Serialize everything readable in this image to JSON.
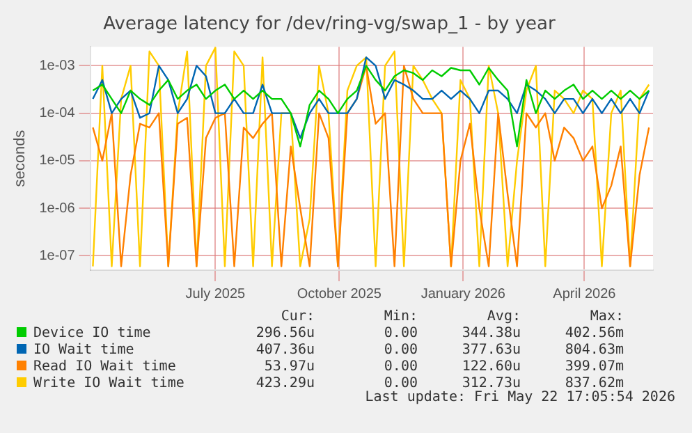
{
  "chart_data": {
    "type": "line",
    "title": "Average latency for /dev/ring-vg/swap_1 - by year",
    "ylabel": "seconds",
    "log": "y",
    "grid": true,
    "legend": "bottom",
    "x": [
      "2025-04-01",
      "2025-04-08",
      "2025-04-15",
      "2025-04-22",
      "2025-04-29",
      "2025-05-06",
      "2025-05-13",
      "2025-05-20",
      "2025-05-27",
      "2025-06-03",
      "2025-06-10",
      "2025-06-17",
      "2025-06-24",
      "2025-07-01",
      "2025-07-08",
      "2025-07-15",
      "2025-07-22",
      "2025-07-29",
      "2025-08-05",
      "2025-08-12",
      "2025-08-19",
      "2025-08-26",
      "2025-09-02",
      "2025-09-09",
      "2025-09-16",
      "2025-09-23",
      "2025-09-30",
      "2025-10-07",
      "2025-10-14",
      "2025-10-21",
      "2025-10-28",
      "2025-11-04",
      "2025-11-11",
      "2025-11-18",
      "2025-11-25",
      "2025-12-02",
      "2025-12-09",
      "2025-12-16",
      "2025-12-23",
      "2025-12-30",
      "2026-01-06",
      "2026-01-13",
      "2026-01-20",
      "2026-01-27",
      "2026-02-03",
      "2026-02-10",
      "2026-02-17",
      "2026-02-24",
      "2026-03-03",
      "2026-03-10",
      "2026-03-17",
      "2026-03-24",
      "2026-03-31",
      "2026-04-07",
      "2026-04-14",
      "2026-04-21",
      "2026-04-28",
      "2026-05-05",
      "2026-05-12",
      "2026-05-19"
    ],
    "xlim": [
      "2025-03-30",
      "2026-05-22"
    ],
    "xticks": [
      {
        "value": "2025-07-01",
        "label": "July 2025"
      },
      {
        "value": "2025-10-01",
        "label": "October 2025"
      },
      {
        "value": "2026-01-01",
        "label": "January 2026"
      },
      {
        "value": "2026-04-01",
        "label": "April 2026"
      }
    ],
    "ylim": [
      5e-08,
      0.0025
    ],
    "yticks": [
      {
        "value": 1e-07,
        "label": "1e-07"
      },
      {
        "value": 1e-06,
        "label": "1e-06"
      },
      {
        "value": 1e-05,
        "label": "1e-05"
      },
      {
        "value": 0.0001,
        "label": "1e-04"
      },
      {
        "value": 0.001,
        "label": "1e-03"
      }
    ],
    "series": [
      {
        "name": "Device IO time",
        "color": "#00cc00",
        "values": [
          0.0003,
          0.0004,
          0.0002,
          0.0001,
          0.0003,
          0.0002,
          0.00015,
          0.0003,
          0.0005,
          0.0002,
          0.0003,
          0.0004,
          0.0002,
          0.0003,
          0.0004,
          0.0002,
          0.0003,
          0.0002,
          0.0003,
          0.0002,
          0.0002,
          0.0001,
          2e-05,
          0.00015,
          0.0003,
          0.0002,
          0.0001,
          0.0002,
          0.0003,
          0.001,
          0.0005,
          0.0003,
          0.0006,
          0.0008,
          0.0007,
          0.0005,
          0.0008,
          0.0006,
          0.0009,
          0.0008,
          0.0008,
          0.0004,
          0.0009,
          0.0005,
          0.0003,
          2e-05,
          0.0005,
          0.0001,
          0.0003,
          0.0002,
          0.0003,
          0.0004,
          0.0002,
          0.0003,
          0.0002,
          0.0003,
          0.0002,
          0.0003,
          0.0002,
          0.0003
        ]
      },
      {
        "name": "IO Wait time",
        "color": "#0066b3",
        "values": [
          0.0002,
          0.0005,
          0.0001,
          0.0002,
          0.0003,
          8e-05,
          0.0001,
          0.001,
          0.0005,
          0.0001,
          0.0002,
          0.001,
          0.0006,
          0.0001,
          0.0001,
          0.0002,
          0.0001,
          0.0001,
          0.0004,
          0.0001,
          0.0001,
          0.0001,
          3e-05,
          0.0001,
          0.0002,
          0.0001,
          0.0001,
          0.0001,
          0.0002,
          0.0015,
          0.001,
          0.0002,
          0.0005,
          0.0004,
          0.0003,
          0.0002,
          0.0002,
          0.0003,
          0.0002,
          0.0003,
          0.0002,
          0.0001,
          0.0003,
          0.0003,
          0.0002,
          0.0001,
          0.0004,
          0.0003,
          0.0002,
          0.0001,
          0.0002,
          0.0002,
          0.0001,
          0.0002,
          0.0001,
          0.0002,
          0.0001,
          0.0002,
          0.0001,
          0.0003
        ]
      },
      {
        "name": "Read IO Wait time",
        "color": "#ff8000",
        "values": [
          5e-05,
          1e-05,
          0.0001,
          6e-08,
          5e-06,
          6e-05,
          5e-05,
          0.0001,
          6e-08,
          6e-05,
          8e-05,
          6e-08,
          3e-05,
          8e-05,
          0.0001,
          6e-08,
          5e-05,
          3e-05,
          6e-05,
          0.0001,
          6e-08,
          2e-05,
          1e-06,
          6e-08,
          0.0001,
          3e-05,
          6e-08,
          0.0001,
          0.0002,
          0.001,
          6e-05,
          0.0001,
          6e-08,
          0.001,
          0.0002,
          0.0001,
          0.0001,
          0.0001,
          6e-08,
          1e-05,
          6e-05,
          1e-06,
          6e-08,
          0.0001,
          2e-06,
          6e-08,
          0.0001,
          5e-05,
          0.0001,
          1e-05,
          5e-05,
          3e-05,
          1e-05,
          2e-05,
          1e-06,
          3e-06,
          2e-05,
          6e-08,
          5e-06,
          5e-05
        ]
      },
      {
        "name": "Write IO Wait time",
        "color": "#ffcc00",
        "values": [
          6e-08,
          0.001,
          6e-08,
          0.0002,
          0.001,
          6e-08,
          0.002,
          0.001,
          6e-08,
          0.0001,
          0.002,
          6e-08,
          0.001,
          0.0024,
          6e-08,
          0.002,
          0.001,
          6e-08,
          0.0015,
          6e-08,
          0.0001,
          0.0001,
          6e-08,
          6e-07,
          0.001,
          0.0001,
          6e-08,
          0.0003,
          0.001,
          0.0015,
          6e-08,
          0.001,
          0.002,
          6e-08,
          0.001,
          0.0005,
          0.0002,
          0.0001,
          6e-08,
          0.0005,
          0.0002,
          6e-08,
          0.001,
          0.0001,
          6e-08,
          1e-05,
          0.0003,
          0.001,
          6e-08,
          0.0003,
          0.0002,
          0.0001,
          0.0003,
          0.0002,
          6e-08,
          0.0001,
          0.0003,
          6e-08,
          0.0002,
          0.0004
        ]
      }
    ],
    "annotations": [
      "Cur:",
      "Min:",
      "Avg:",
      "Max:",
      "296.56u",
      "0.00",
      "344.38u",
      "402.56m",
      "407.36u",
      "0.00",
      "377.63u",
      "804.63m",
      "53.97u",
      "0.00",
      "122.60u",
      "399.07m",
      "423.29u",
      "0.00",
      "312.73u",
      "837.62m",
      "Last update: Fri May 22 17:05:54 2026"
    ]
  }
}
